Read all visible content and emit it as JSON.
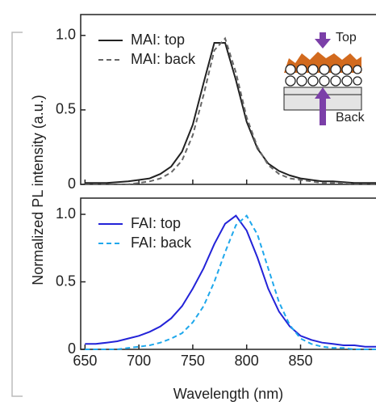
{
  "chart_data": [
    {
      "type": "line",
      "y_label": "Normalized PL intensity (a.u.)",
      "annotations": [
        "Top",
        "Back"
      ],
      "x": [
        650,
        660,
        670,
        680,
        690,
        700,
        710,
        720,
        730,
        740,
        750,
        760,
        770,
        780,
        790,
        800,
        810,
        820,
        830,
        840,
        850,
        860,
        870,
        880,
        890,
        900,
        910,
        920
      ],
      "series": [
        {
          "name": "MAI: top",
          "color": "#222222",
          "dash": false,
          "values": [
            0.01,
            0.01,
            0.01,
            0.015,
            0.02,
            0.03,
            0.04,
            0.07,
            0.12,
            0.22,
            0.4,
            0.68,
            0.95,
            0.95,
            0.7,
            0.42,
            0.24,
            0.14,
            0.09,
            0.06,
            0.04,
            0.03,
            0.02,
            0.02,
            0.015,
            0.01,
            0.01,
            0.01
          ]
        },
        {
          "name": "MAI: back",
          "color": "#666666",
          "dash": true,
          "values": [
            0,
            0,
            0,
            0,
            0,
            0.01,
            0.02,
            0.04,
            0.08,
            0.16,
            0.33,
            0.6,
            0.9,
            0.98,
            0.75,
            0.45,
            0.25,
            0.13,
            0.07,
            0.04,
            0.03,
            0.02,
            0.01,
            0.01,
            0.01,
            0,
            0,
            0
          ]
        }
      ],
      "xlim": [
        646,
        920
      ],
      "ylim": [
        0,
        1.14
      ],
      "yticks": [
        0,
        0.5,
        {
          "value": 1,
          "label": "1.0"
        }
      ],
      "legend": "top-left"
    },
    {
      "type": "line",
      "x_label": "Wavelength (nm)",
      "x": [
        650,
        660,
        670,
        680,
        690,
        700,
        710,
        720,
        730,
        740,
        750,
        760,
        770,
        780,
        790,
        800,
        810,
        820,
        830,
        840,
        850,
        860,
        870,
        880,
        890,
        900,
        910,
        920
      ],
      "series": [
        {
          "name": "FAI: top",
          "color": "#2323d8",
          "dash": false,
          "values": [
            0.04,
            0.04,
            0.05,
            0.06,
            0.08,
            0.1,
            0.13,
            0.17,
            0.23,
            0.32,
            0.45,
            0.6,
            0.78,
            0.93,
            0.99,
            0.88,
            0.68,
            0.45,
            0.28,
            0.17,
            0.1,
            0.07,
            0.05,
            0.04,
            0.03,
            0.03,
            0.02,
            0.02
          ]
        },
        {
          "name": "FAI: back",
          "color": "#1fa8ec",
          "dash": true,
          "values": [
            0,
            0,
            0,
            0,
            0.01,
            0.02,
            0.03,
            0.05,
            0.08,
            0.12,
            0.2,
            0.32,
            0.5,
            0.72,
            0.92,
            0.99,
            0.85,
            0.6,
            0.35,
            0.18,
            0.08,
            0.04,
            0.02,
            0.01,
            0.01,
            0,
            0,
            0
          ]
        }
      ],
      "xlim": [
        646,
        920
      ],
      "ylim": [
        0,
        1.12
      ],
      "xticks": [
        650,
        700,
        750,
        800,
        850
      ],
      "yticks": [
        0,
        0.5,
        {
          "value": 1,
          "label": "1.0"
        }
      ],
      "legend": "top-left"
    }
  ]
}
